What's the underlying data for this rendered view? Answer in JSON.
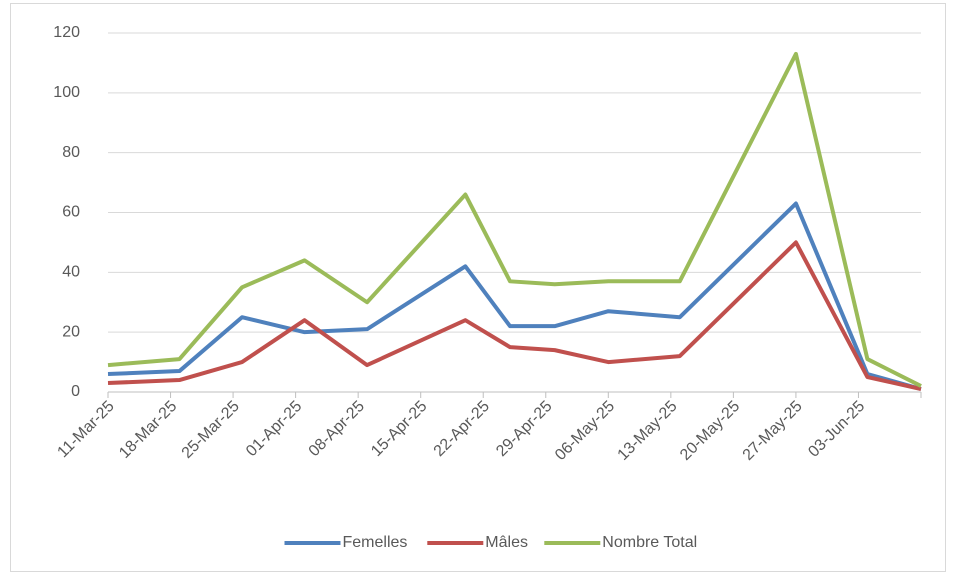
{
  "chart_data": {
    "type": "line",
    "x": [
      "2025-03-11",
      "2025-03-19",
      "2025-03-26",
      "2025-04-02",
      "2025-04-09",
      "2025-04-20",
      "2025-04-25",
      "2025-04-30",
      "2025-05-06",
      "2025-05-14",
      "2025-05-27",
      "2025-06-04",
      "2025-06-10"
    ],
    "series": [
      {
        "name": "Femelles",
        "color": "#4f81bd",
        "values": [
          6,
          7,
          25,
          20,
          21,
          42,
          22,
          22,
          27,
          25,
          63,
          6,
          1
        ]
      },
      {
        "name": "Mâles",
        "color": "#c0504d",
        "values": [
          3,
          4,
          10,
          24,
          9,
          24,
          15,
          14,
          10,
          12,
          50,
          5,
          1
        ]
      },
      {
        "name": "Nombre Total",
        "color": "#9bbb59",
        "values": [
          9,
          11,
          35,
          44,
          30,
          66,
          37,
          36,
          37,
          37,
          113,
          11,
          2
        ]
      }
    ],
    "xlim": [
      "2025-03-11",
      "2025-06-10"
    ],
    "xticks": [
      {
        "value": "2025-03-11",
        "label": "11-Mar-25"
      },
      {
        "value": "2025-03-18",
        "label": "18-Mar-25"
      },
      {
        "value": "2025-03-25",
        "label": "25-Mar-25"
      },
      {
        "value": "2025-04-01",
        "label": "01-Apr-25"
      },
      {
        "value": "2025-04-08",
        "label": "08-Apr-25"
      },
      {
        "value": "2025-04-15",
        "label": "15-Apr-25"
      },
      {
        "value": "2025-04-22",
        "label": "22-Apr-25"
      },
      {
        "value": "2025-04-29",
        "label": "29-Apr-25"
      },
      {
        "value": "2025-05-06",
        "label": "06-May-25"
      },
      {
        "value": "2025-05-13",
        "label": "13-May-25"
      },
      {
        "value": "2025-05-20",
        "label": "20-May-25"
      },
      {
        "value": "2025-05-27",
        "label": "27-May-25"
      },
      {
        "value": "2025-06-03",
        "label": "03-Jun-25"
      }
    ],
    "ylim": [
      0,
      120
    ],
    "yticks": [
      0,
      20,
      40,
      60,
      80,
      100,
      120
    ],
    "grid": true,
    "legend": "bottom"
  }
}
